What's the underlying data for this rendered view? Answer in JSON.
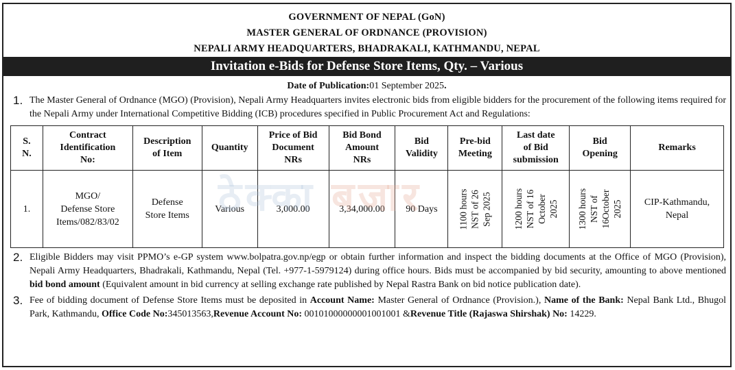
{
  "header": {
    "line1": "GOVERNMENT OF NEPAL (GoN)",
    "line2": "MASTER GENERAL OF ORDNANCE (PROVISION)",
    "line3": "NEPALI ARMY HEADQUARTERS, BHADRAKALI, KATHMANDU, NEPAL"
  },
  "banner": "Invitation e-Bids for Defense Store Items, Qty. – Various",
  "publication": {
    "label": "Date of Publication:",
    "value": "01 September 2025",
    "end": "."
  },
  "para1": {
    "num": "1.",
    "text": "The Master General of Ordnance (MGO) (Provision), Nepali Army Headquarters invites electronic bids from eligible bidders for the procurement of the following items required for the Nepali Army under International Competitive Bidding (ICB) procedures specified in Public Procurement Act and Regulations:"
  },
  "table": {
    "headers": {
      "sn_1": "S.",
      "sn_2": "N.",
      "cid_1": "Contract",
      "cid_2": "Identification",
      "cid_3": "No:",
      "desc_1": "Description",
      "desc_2": "of Item",
      "qty": "Quantity",
      "price_1": "Price of Bid",
      "price_2": "Document",
      "price_3": "NRs",
      "bond_1": "Bid Bond",
      "bond_2": "Amount",
      "bond_3": "NRs",
      "validity_1": "Bid",
      "validity_2": "Validity",
      "prebid_1": "Pre-bid",
      "prebid_2": "Meeting",
      "last_1": "Last date",
      "last_2": "of Bid",
      "last_3": "submission",
      "open_1": "Bid",
      "open_2": "Opening",
      "remarks": "Remarks"
    },
    "row": {
      "sn": "1.",
      "cid_1": "MGO/",
      "cid_2": "Defense Store",
      "cid_3": "Items/082/83/02",
      "desc_1": "Defense",
      "desc_2": "Store Items",
      "qty": "Various",
      "price": "3,000.00",
      "bond": "3,34,000.00",
      "validity": "90 Days",
      "prebid_1": "1100 hours",
      "prebid_2": "NST of 26",
      "prebid_3": "Sep  2025",
      "last_1": "1200 hours",
      "last_2": "NST of 16",
      "last_3": "October",
      "last_4": "2025",
      "open_1": "1300 hours",
      "open_2": "NST of",
      "open_3": "16October",
      "open_4": "2025",
      "remarks_1": "CIP-Kathmandu,",
      "remarks_2": "Nepal"
    }
  },
  "watermark": {
    "part1": "ठेक्का",
    "part2": "बजार"
  },
  "para2": {
    "num": "2.",
    "text_a": "Eligible Bidders may visit PPMO’s e-GP system www.bolpatra.gov.np/egp or obtain further information and inspect the bidding documents at the Office of MGO (Provision), Nepali Army Headquarters, Bhadrakali, Kathmandu, Nepal (Tel. +977-1-5979124) during office hours. Bids must be accompanied by bid security, amounting to above mentioned ",
    "bold": "bid bond amount",
    "text_b": " (Equivalent amount in bid currency at selling exchange rate published by Nepal Rastra Bank on bid notice publication date)."
  },
  "para3": {
    "num": "3.",
    "t1": "Fee of bidding document of Defense Store Items must be deposited in ",
    "b1": "Account Name:",
    "t2": " Master General of Ordnance (Provision.), ",
    "b2": "Name of the Bank:",
    "t3": " Nepal Bank Ltd., Bhugol Park, Kathmandu, ",
    "b3": "Office Code No:",
    "t4": "345013563,",
    "b4": "Revenue Account No:",
    "t5": " 00101000000001001001 &",
    "b5": "Revenue Title (Rajaswa Shirshak) No:",
    "t6": " 14229."
  }
}
